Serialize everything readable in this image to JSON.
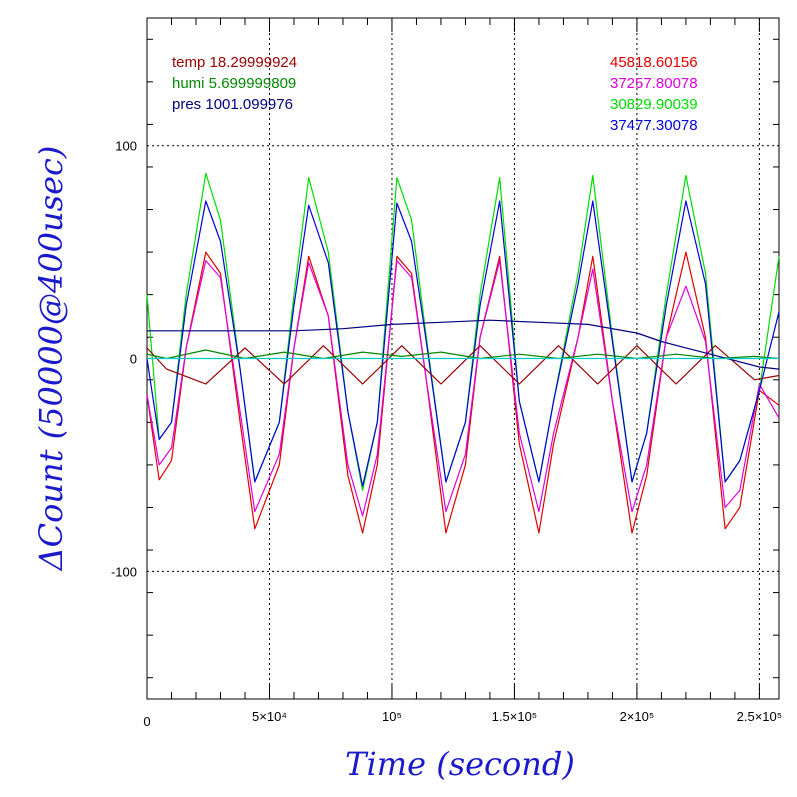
{
  "chart_data": {
    "type": "line",
    "title": "",
    "xlabel": "Time (second)",
    "ylabel": "ΔCount (50000@400usec)",
    "xlim": [
      0,
      258000
    ],
    "ylim": [
      -160,
      160
    ],
    "grid": true,
    "x_ticks": [
      {
        "value": 50000,
        "label": "5×10⁴"
      },
      {
        "value": 100000,
        "label": "10⁵"
      },
      {
        "value": 150000,
        "label": "1.5×10⁵"
      },
      {
        "value": 200000,
        "label": "2×10⁵"
      },
      {
        "value": 250000,
        "label": "2.5×10⁵"
      }
    ],
    "x_origin_label": "0",
    "y_ticks": [
      {
        "value": 100,
        "label": "100"
      },
      {
        "value": 0,
        "label": "0"
      },
      {
        "value": -100,
        "label": "-100"
      }
    ],
    "legend_left": [
      {
        "text": "temp 18.29999924",
        "color": "#990000"
      },
      {
        "text": "humi 5.699999809",
        "color": "#008800"
      },
      {
        "text": "pres 1001.099976",
        "color": "#000080"
      }
    ],
    "legend_right": [
      {
        "text": "45818.60156",
        "color": "#e00000"
      },
      {
        "text": "37257.80078",
        "color": "#e000e0"
      },
      {
        "text": "30829.90039",
        "color": "#00dd00"
      },
      {
        "text": "37477.30078",
        "color": "#0000dd"
      }
    ],
    "series": [
      {
        "color": "#e00000",
        "x": [
          0,
          5000,
          10000,
          16000,
          24000,
          30000,
          38000,
          44000,
          54000,
          60000,
          66000,
          74000,
          82000,
          88000,
          94000,
          102000,
          108000,
          114000,
          122000,
          130000,
          136000,
          144000,
          152000,
          160000,
          166000,
          176000,
          182000,
          190000,
          198000,
          204000,
          212000,
          220000,
          228000,
          236000,
          242000,
          250000,
          258000
        ],
        "y": [
          -17,
          -57,
          -48,
          5,
          50,
          40,
          -30,
          -80,
          -50,
          5,
          48,
          20,
          -55,
          -82,
          -50,
          48,
          40,
          -10,
          -82,
          -50,
          10,
          48,
          -40,
          -82,
          -40,
          10,
          48,
          -20,
          -82,
          -55,
          10,
          50,
          10,
          -80,
          -70,
          -15,
          -22
        ]
      },
      {
        "color": "#e000e0",
        "x": [
          0,
          5000,
          10000,
          16000,
          24000,
          30000,
          38000,
          44000,
          54000,
          60000,
          66000,
          74000,
          82000,
          88000,
          94000,
          102000,
          108000,
          114000,
          122000,
          130000,
          136000,
          144000,
          152000,
          160000,
          166000,
          176000,
          182000,
          190000,
          198000,
          204000,
          212000,
          220000,
          228000,
          236000,
          242000,
          250000,
          258000
        ],
        "y": [
          -17,
          -50,
          -42,
          5,
          46,
          38,
          -25,
          -72,
          -45,
          5,
          45,
          20,
          -50,
          -74,
          -45,
          46,
          38,
          -10,
          -72,
          -45,
          10,
          46,
          -35,
          -72,
          -35,
          10,
          42,
          -20,
          -72,
          -50,
          10,
          34,
          8,
          -70,
          -62,
          -12,
          -28
        ]
      },
      {
        "color": "#00dd00",
        "x": [
          0,
          5000,
          10000,
          16000,
          24000,
          30000,
          38000,
          44000,
          54000,
          60000,
          66000,
          74000,
          82000,
          88000,
          94000,
          102000,
          108000,
          114000,
          122000,
          130000,
          136000,
          144000,
          152000,
          160000,
          166000,
          176000,
          182000,
          190000,
          198000,
          204000,
          212000,
          220000,
          228000,
          236000,
          242000,
          250000,
          258000
        ],
        "y": [
          30,
          -38,
          -30,
          30,
          87,
          65,
          -5,
          -58,
          -30,
          30,
          85,
          50,
          -25,
          -62,
          -30,
          85,
          65,
          10,
          -58,
          -30,
          30,
          85,
          -20,
          -58,
          -20,
          40,
          86,
          10,
          -58,
          -35,
          30,
          86,
          40,
          -58,
          -48,
          -15,
          48
        ]
      },
      {
        "color": "#0000dd",
        "x": [
          0,
          5000,
          10000,
          16000,
          24000,
          30000,
          38000,
          44000,
          54000,
          60000,
          66000,
          74000,
          82000,
          88000,
          94000,
          102000,
          108000,
          114000,
          122000,
          130000,
          136000,
          144000,
          152000,
          160000,
          166000,
          176000,
          182000,
          190000,
          198000,
          204000,
          212000,
          220000,
          228000,
          236000,
          242000,
          250000,
          258000
        ],
        "y": [
          0,
          -38,
          -30,
          25,
          74,
          55,
          -5,
          -58,
          -30,
          25,
          72,
          45,
          -25,
          -60,
          -30,
          73,
          55,
          8,
          -58,
          -30,
          25,
          74,
          -20,
          -58,
          -20,
          35,
          74,
          8,
          -58,
          -35,
          25,
          74,
          35,
          -58,
          -48,
          -15,
          22
        ]
      },
      {
        "color": "#990000",
        "x": [
          0,
          8000,
          24000,
          40000,
          56000,
          72000,
          88000,
          104000,
          120000,
          136000,
          152000,
          168000,
          184000,
          200000,
          216000,
          232000,
          248000,
          258000
        ],
        "y": [
          5,
          -5,
          -12,
          5,
          -12,
          6,
          -12,
          6,
          -12,
          6,
          -12,
          6,
          -12,
          6,
          -12,
          6,
          -10,
          -8
        ]
      },
      {
        "color": "#008800",
        "x": [
          0,
          8000,
          24000,
          40000,
          56000,
          72000,
          88000,
          104000,
          120000,
          136000,
          152000,
          168000,
          184000,
          200000,
          216000,
          232000,
          248000,
          258000
        ],
        "y": [
          2,
          0,
          4,
          0,
          3,
          0,
          3,
          1,
          3,
          0,
          2,
          0,
          2,
          0,
          2,
          0,
          1,
          0
        ]
      },
      {
        "color": "#000080",
        "x": [
          0,
          20000,
          40000,
          60000,
          80000,
          100000,
          120000,
          140000,
          160000,
          180000,
          200000,
          210000,
          220000,
          230000,
          240000,
          250000,
          258000
        ],
        "y": [
          13,
          13,
          13,
          13,
          14,
          16,
          17,
          18,
          17,
          16,
          12,
          8,
          5,
          2,
          -1,
          -4,
          -5
        ]
      },
      {
        "color": "#00cccc",
        "x": [
          0,
          258000
        ],
        "y": [
          0,
          0
        ]
      }
    ]
  }
}
